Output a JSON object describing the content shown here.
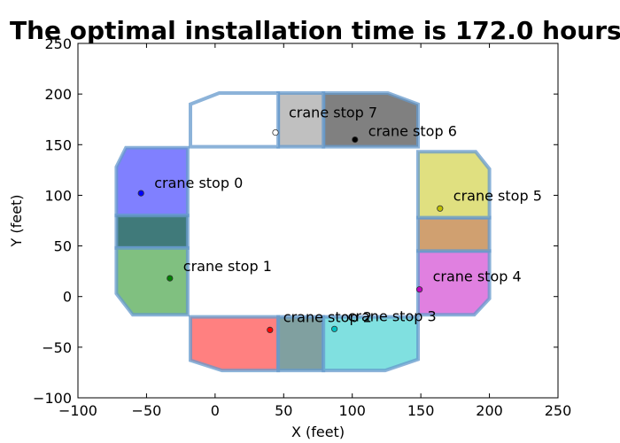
{
  "chart_data": {
    "type": "scatter",
    "title": "The optimal installation time is  172.0 hours",
    "xlabel": "X (feet)",
    "ylabel": "Y (feet)",
    "xlim": [
      -100,
      250
    ],
    "ylim": [
      -100,
      250
    ],
    "xticks": [
      -100,
      -50,
      0,
      50,
      100,
      150,
      200,
      250
    ],
    "yticks": [
      -100,
      -50,
      0,
      50,
      100,
      150,
      200,
      250
    ],
    "xtick_labels": [
      "−100",
      "−50",
      "0",
      "50",
      "100",
      "150",
      "200",
      "250"
    ],
    "ytick_labels": [
      "−100",
      "−50",
      "0",
      "50",
      "100",
      "150",
      "200",
      "250"
    ],
    "grid": false,
    "regions": [
      {
        "color": "#8080ff",
        "points": [
          [
            -72,
            128
          ],
          [
            -65,
            147
          ],
          [
            -20,
            147
          ],
          [
            -20,
            80
          ],
          [
            -72,
            80
          ]
        ]
      },
      {
        "color": "#407a7a",
        "points": [
          [
            -72,
            80
          ],
          [
            -20,
            80
          ],
          [
            -20,
            48
          ],
          [
            -72,
            48
          ]
        ]
      },
      {
        "color": "#80c080",
        "points": [
          [
            -72,
            48
          ],
          [
            -20,
            48
          ],
          [
            -20,
            -18
          ],
          [
            -60,
            -18
          ],
          [
            -72,
            3
          ]
        ]
      },
      {
        "color": "#ff8080",
        "points": [
          [
            -18,
            -20
          ],
          [
            46,
            -20
          ],
          [
            46,
            -73
          ],
          [
            5,
            -73
          ],
          [
            -18,
            -63
          ]
        ]
      },
      {
        "color": "#80a0a0",
        "points": [
          [
            46,
            -20
          ],
          [
            79,
            -20
          ],
          [
            79,
            -73
          ],
          [
            46,
            -73
          ]
        ]
      },
      {
        "color": "#80e0e0",
        "points": [
          [
            79,
            -20
          ],
          [
            148,
            -20
          ],
          [
            148,
            -62
          ],
          [
            124,
            -73
          ],
          [
            79,
            -73
          ]
        ]
      },
      {
        "color": "#e080e0",
        "points": [
          [
            148,
            45
          ],
          [
            200,
            45
          ],
          [
            200,
            -2
          ],
          [
            189,
            -18
          ],
          [
            148,
            -18
          ]
        ]
      },
      {
        "color": "#d0a070",
        "points": [
          [
            148,
            78
          ],
          [
            200,
            78
          ],
          [
            200,
            45
          ],
          [
            148,
            45
          ]
        ]
      },
      {
        "color": "#e0e080",
        "points": [
          [
            148,
            143
          ],
          [
            190,
            143
          ],
          [
            200,
            126
          ],
          [
            200,
            78
          ],
          [
            148,
            78
          ]
        ]
      },
      {
        "color": "#808080",
        "points": [
          [
            79,
            201
          ],
          [
            126,
            201
          ],
          [
            148,
            190
          ],
          [
            148,
            148
          ],
          [
            79,
            148
          ]
        ]
      },
      {
        "color": "#c0c0c0",
        "points": [
          [
            46,
            201
          ],
          [
            79,
            201
          ],
          [
            79,
            148
          ],
          [
            46,
            148
          ]
        ]
      },
      {
        "color": "#ffffff",
        "points": [
          [
            -18,
            190
          ],
          [
            3,
            201
          ],
          [
            46,
            201
          ],
          [
            46,
            148
          ],
          [
            -18,
            148
          ]
        ]
      }
    ],
    "stops": [
      {
        "name": "crane stop 0",
        "x": -54,
        "y": 102,
        "color": "#0000ff"
      },
      {
        "name": "crane stop 1",
        "x": -33,
        "y": 18,
        "color": "#008000"
      },
      {
        "name": "crane stop 2",
        "x": 40,
        "y": -33,
        "color": "#ff0000"
      },
      {
        "name": "crane stop 3",
        "x": 87,
        "y": -32,
        "color": "#00c0c0"
      },
      {
        "name": "crane stop 4",
        "x": 149,
        "y": 7,
        "color": "#c000c0"
      },
      {
        "name": "crane stop 5",
        "x": 164,
        "y": 87,
        "color": "#c0c000"
      },
      {
        "name": "crane stop 6",
        "x": 102,
        "y": 155,
        "color": "#000000"
      },
      {
        "name": "crane stop 7",
        "x": 44,
        "y": 162,
        "color": "#ffffff"
      }
    ],
    "stop_label_offsets": [
      {
        "dx": 10,
        "dy": 10
      },
      {
        "dx": 10,
        "dy": 12
      },
      {
        "dx": 10,
        "dy": 13
      },
      {
        "dx": 10,
        "dy": 13
      },
      {
        "dx": 10,
        "dy": 13
      },
      {
        "dx": 10,
        "dy": 13
      },
      {
        "dx": 10,
        "dy": 8
      },
      {
        "dx": 10,
        "dy": 21
      }
    ],
    "region_outline_color": "#6699cc"
  }
}
